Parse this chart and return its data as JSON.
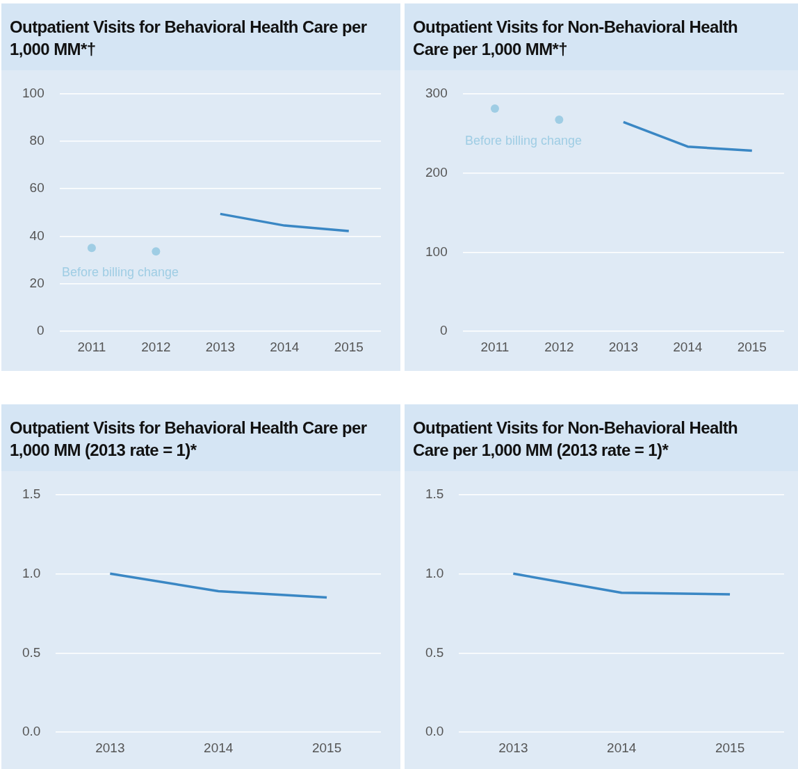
{
  "chart_data": [
    {
      "type": "line",
      "title": "Outpatient Visits for Behavioral Health Care per 1,000 MM*†",
      "categories": [
        "2011",
        "2012",
        "2013",
        "2014",
        "2015"
      ],
      "ylim": [
        0,
        100
      ],
      "yticks": [
        0,
        20,
        40,
        60,
        80,
        100
      ],
      "grid": "y",
      "legend": false,
      "annotations": [
        "Before billing change"
      ],
      "series": [
        {
          "type": "scatter",
          "color": "#9fcde4",
          "marker": "circle",
          "values": [
            35.1,
            33.6,
            null,
            null,
            null
          ]
        },
        {
          "color": "#3a87c4",
          "marker": "none",
          "values": [
            null,
            null,
            49.4,
            44.5,
            42.2
          ]
        }
      ]
    },
    {
      "type": "line",
      "title": "Outpatient Visits for Non-Behavioral Health Care per 1,000 MM*†",
      "categories": [
        "2011",
        "2012",
        "2013",
        "2014",
        "2015"
      ],
      "ylim": [
        0,
        300
      ],
      "yticks": [
        0,
        100,
        200,
        300
      ],
      "grid": "y",
      "legend": false,
      "annotations": [
        "Before billing change"
      ],
      "series": [
        {
          "type": "scatter",
          "color": "#9fcde4",
          "marker": "circle",
          "values": [
            281,
            267,
            null,
            null,
            null
          ]
        },
        {
          "color": "#3a87c4",
          "marker": "none",
          "values": [
            null,
            null,
            264,
            233,
            228
          ]
        }
      ]
    },
    {
      "type": "line",
      "title": "Outpatient Visits for Behavioral Health Care per 1,000 MM (2013 rate = 1)*",
      "categories": [
        "2013",
        "2014",
        "2015"
      ],
      "ylim": [
        0,
        1.5
      ],
      "yticks": [
        {
          "value": 0,
          "label": "0.0"
        },
        {
          "value": 0.5,
          "label": "0.5"
        },
        {
          "value": 1,
          "label": "1.0"
        },
        {
          "value": 1.5,
          "label": "1.5"
        }
      ],
      "grid": "y",
      "legend": false,
      "series": [
        {
          "color": "#3a87c4",
          "marker": "none",
          "values": [
            1.0,
            0.89,
            0.85
          ]
        }
      ]
    },
    {
      "type": "line",
      "title": "Outpatient Visits for Non-Behavioral Health Care per 1,000 MM (2013 rate = 1)*",
      "categories": [
        "2013",
        "2014",
        "2015"
      ],
      "ylim": [
        0,
        1.5
      ],
      "yticks": [
        {
          "value": 0,
          "label": "0.0"
        },
        {
          "value": 0.5,
          "label": "0.5"
        },
        {
          "value": 1,
          "label": "1.0"
        },
        {
          "value": 1.5,
          "label": "1.5"
        }
      ],
      "grid": "y",
      "legend": false,
      "series": [
        {
          "color": "#3a87c4",
          "marker": "none",
          "values": [
            1.0,
            0.88,
            0.87
          ]
        }
      ]
    }
  ]
}
